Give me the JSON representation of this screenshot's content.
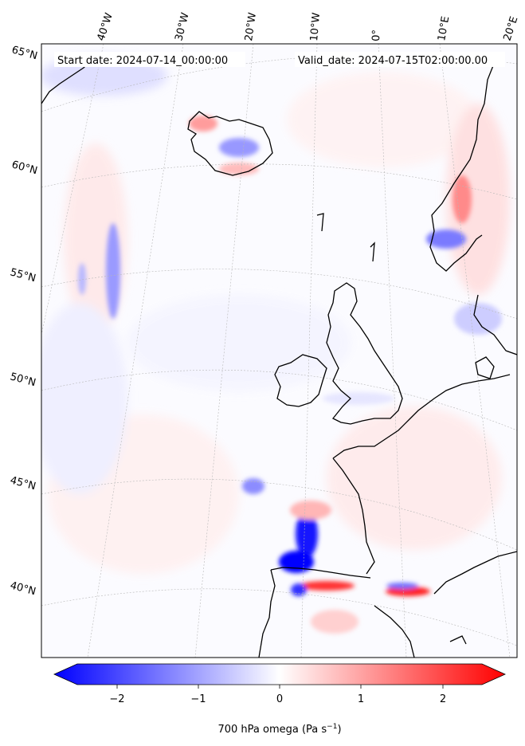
{
  "header": {
    "start_date": "Start date: 2024-07-14_00:00:00",
    "valid_date": "Valid_date: 2024-07-15T02:00:00.00"
  },
  "lon_labels": [
    "40°W",
    "30°W",
    "20°W",
    "10°W",
    "0°",
    "10°E",
    "20°E"
  ],
  "lat_labels": [
    "65°N",
    "60°N",
    "55°N",
    "50°N",
    "45°N",
    "40°N"
  ],
  "colorbar": {
    "ticks": [
      "−2",
      "−1",
      "0",
      "1",
      "2"
    ],
    "label_main": "700 hPa omega (Pa s",
    "label_sup": "−1",
    "label_end": ")",
    "colors": {
      "negative": "#0000ff",
      "zero": "#ffffff",
      "positive": "#ff0000"
    }
  }
}
